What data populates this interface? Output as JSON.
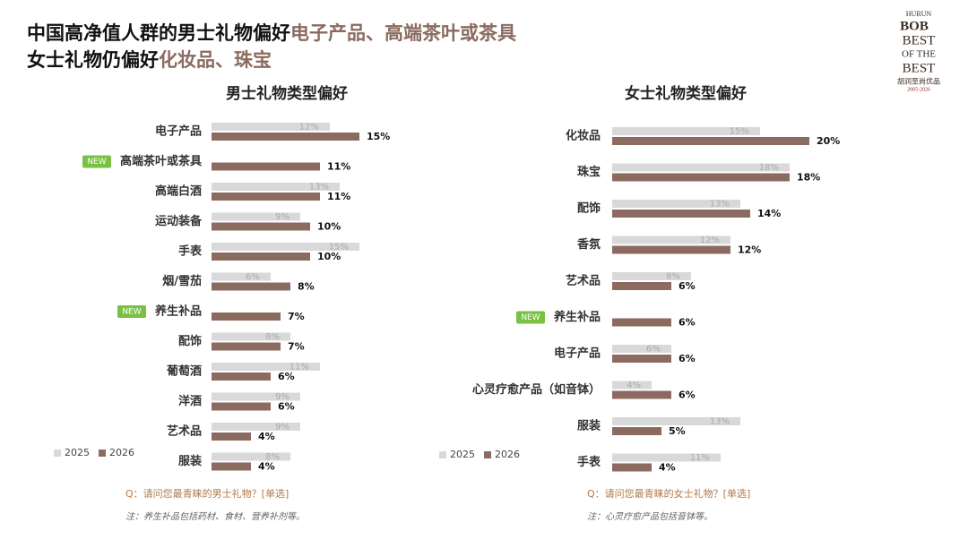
{
  "header": {
    "line1": "中国高净值人群的男士礼物偏好",
    "line1_highlight": "电子产品、高端茶叶或茶具",
    "line2": "女士礼物仍偏好",
    "line2_highlight": "化妆品、珠宝"
  },
  "logo": {
    "brand": "HURUN",
    "name": "BOB",
    "slogan1": "BEST",
    "slogan2": "OF THE",
    "slogan3": "BEST",
    "cn": "胡润至尚优品",
    "years": "2005-2026"
  },
  "new_label": "NEW",
  "chart_data": [
    {
      "type": "bar",
      "orientation": "horizontal",
      "title": "男士礼物类型偏好",
      "categories": [
        "电子产品",
        "高端茶叶或茶具",
        "高端白酒",
        "运动装备",
        "手表",
        "烟/雪茄",
        "养生补品",
        "配饰",
        "葡萄酒",
        "洋酒",
        "艺术品",
        "服装"
      ],
      "series": [
        {
          "name": "2025",
          "color": "#d9d9d9",
          "values": [
            12,
            null,
            13,
            9,
            15,
            6,
            null,
            8,
            11,
            9,
            9,
            8
          ],
          "value_labels": [
            "12%",
            null,
            "13%",
            "9%",
            "15%",
            "6%",
            null,
            "8%",
            "11%",
            "9%",
            "9%",
            "8%"
          ]
        },
        {
          "name": "2026",
          "color": "#8b6b60",
          "values": [
            15,
            11,
            11,
            10,
            10,
            8,
            7,
            7,
            6,
            6,
            4,
            4
          ],
          "value_labels": [
            "15%",
            "11%",
            "11%",
            "10%",
            "10%",
            "8%",
            "7%",
            "7%",
            "6%",
            "6%",
            "4%",
            "4%"
          ]
        }
      ],
      "question": "Q：请问您最青睐的男士礼物？[单选]",
      "note": "注：养生补品包括药材、食材、营养补剂等。"
    },
    {
      "type": "bar",
      "orientation": "horizontal",
      "title": "女士礼物类型偏好",
      "categories": [
        "化妆品",
        "珠宝",
        "配饰",
        "香氛",
        "艺术品",
        "养生补品",
        "电子产品",
        "心灵疗愈产品（如音钵）",
        "服装",
        "手表"
      ],
      "series": [
        {
          "name": "2025",
          "color": "#d9d9d9",
          "values": [
            15,
            18,
            13,
            12,
            8,
            null,
            6,
            4,
            13,
            11
          ],
          "value_labels": [
            "15%",
            "18%",
            "13%",
            "12%",
            "8%",
            null,
            "6%",
            "4%",
            "13%",
            "11%"
          ]
        },
        {
          "name": "2026",
          "color": "#8b6b60",
          "values": [
            20,
            18,
            14,
            12,
            6,
            6,
            6,
            6,
            5,
            4
          ],
          "value_labels": [
            "20%",
            "18%",
            "14%",
            "12%",
            "6%",
            "6%",
            "6%",
            "6%",
            "5%",
            "4%"
          ]
        }
      ],
      "question": "Q：请问您最青睐的女士礼物？[单选]",
      "note": "注：心灵疗愈产品包括音钵等。"
    }
  ]
}
